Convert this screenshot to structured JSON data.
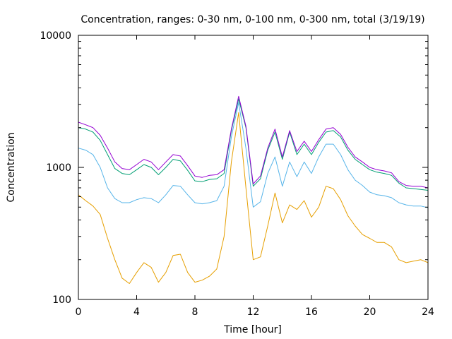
{
  "chart_data": {
    "type": "line",
    "title": "Concentration, ranges: 0-30 nm, 0-100 nm, 0-300 nm, total (3/19/19)",
    "xlabel": "Time [hour]",
    "ylabel": "Concentration",
    "xlim": [
      0,
      24
    ],
    "ylim": [
      100,
      10000
    ],
    "yscale": "log",
    "grid": false,
    "legend": "none",
    "x_ticks": [
      0,
      4,
      8,
      12,
      16,
      20,
      24
    ],
    "x_tick_labels": [
      "0",
      "4",
      "8",
      "12",
      "16",
      "20",
      "24"
    ],
    "y_ticks": [
      100,
      1000,
      10000
    ],
    "y_tick_labels": [
      "100",
      "1000",
      "10000"
    ],
    "x": [
      0,
      0.5,
      1,
      1.5,
      2,
      2.5,
      3,
      3.5,
      4,
      4.5,
      5,
      5.5,
      6,
      6.5,
      7,
      7.5,
      8,
      8.5,
      9,
      9.5,
      10,
      10.5,
      11,
      11.5,
      12,
      12.5,
      13,
      13.5,
      14,
      14.5,
      15,
      15.5,
      16,
      16.5,
      17,
      17.5,
      18,
      18.5,
      19,
      19.5,
      20,
      20.5,
      21,
      21.5,
      22,
      22.5,
      23,
      23.5,
      24
    ],
    "series": [
      {
        "color": "#e69f00",
        "values": [
          620,
          560,
          510,
          440,
          290,
          200,
          145,
          132,
          160,
          190,
          175,
          135,
          160,
          215,
          220,
          160,
          135,
          140,
          150,
          170,
          300,
          1100,
          2600,
          700,
          200,
          210,
          360,
          640,
          380,
          520,
          480,
          560,
          420,
          500,
          720,
          690,
          570,
          430,
          360,
          310,
          290,
          270,
          270,
          250,
          200,
          190,
          195,
          200,
          190
        ]
      },
      {
        "color": "#56b4e9",
        "values": [
          1400,
          1350,
          1250,
          1000,
          700,
          580,
          540,
          540,
          570,
          590,
          580,
          540,
          620,
          730,
          720,
          620,
          540,
          530,
          540,
          560,
          720,
          1700,
          3100,
          1400,
          500,
          550,
          900,
          1200,
          720,
          1100,
          850,
          1100,
          900,
          1200,
          1500,
          1500,
          1250,
          960,
          800,
          730,
          650,
          620,
          610,
          590,
          540,
          520,
          510,
          510,
          495
        ]
      },
      {
        "color": "#009e73",
        "values": [
          2000,
          1950,
          1850,
          1600,
          1250,
          980,
          900,
          880,
          960,
          1050,
          1000,
          880,
          1000,
          1150,
          1120,
          950,
          790,
          780,
          810,
          820,
          900,
          1900,
          3300,
          2000,
          720,
          820,
          1350,
          1850,
          1150,
          1850,
          1250,
          1500,
          1250,
          1550,
          1850,
          1900,
          1700,
          1350,
          1150,
          1050,
          960,
          920,
          900,
          870,
          760,
          700,
          690,
          680,
          670
        ]
      },
      {
        "color": "#9400d3",
        "values": [
          2200,
          2100,
          2000,
          1750,
          1400,
          1100,
          980,
          960,
          1050,
          1150,
          1100,
          960,
          1100,
          1250,
          1220,
          1030,
          860,
          840,
          870,
          880,
          960,
          1950,
          3450,
          2050,
          750,
          860,
          1400,
          1950,
          1200,
          1900,
          1320,
          1580,
          1320,
          1620,
          1950,
          2000,
          1780,
          1420,
          1200,
          1100,
          1000,
          960,
          940,
          910,
          780,
          730,
          720,
          720,
          700
        ]
      }
    ]
  }
}
